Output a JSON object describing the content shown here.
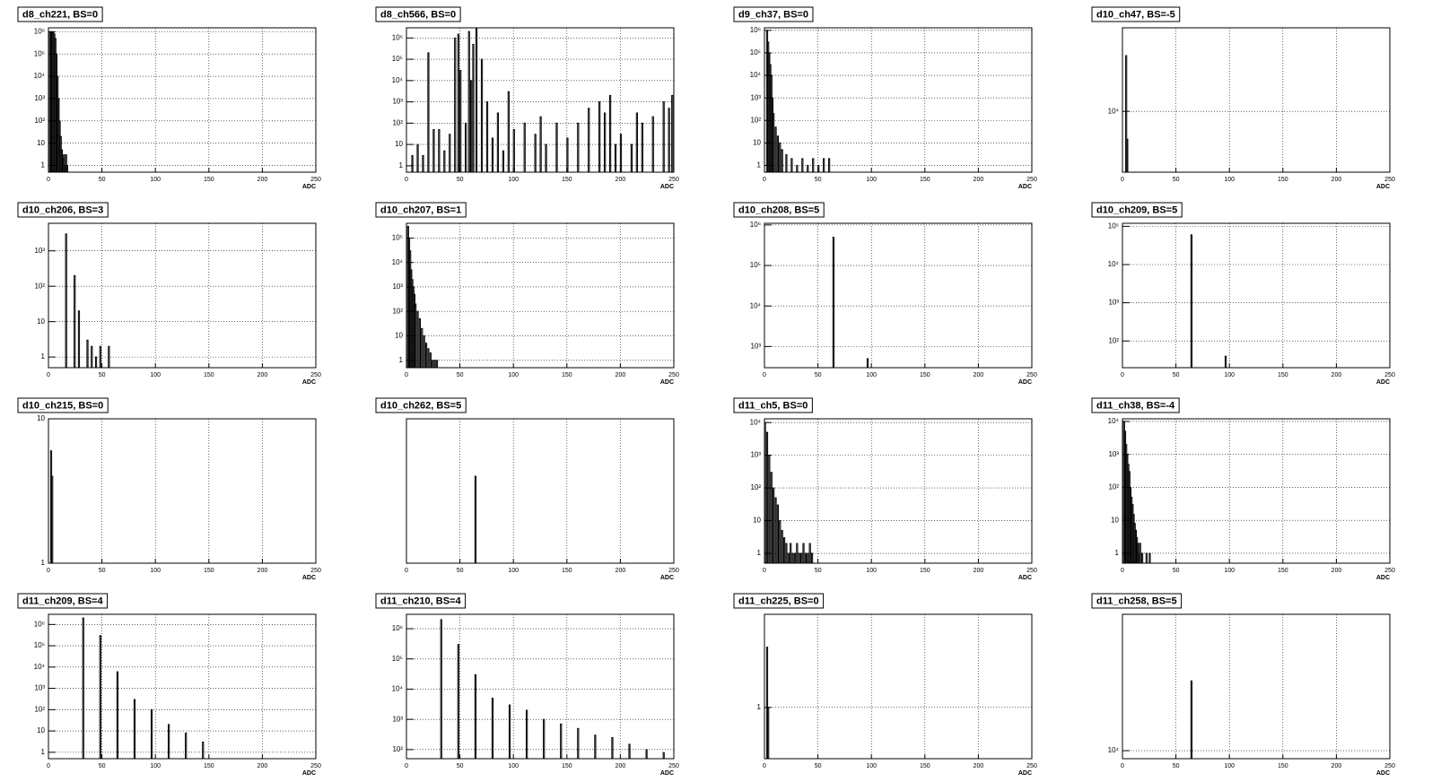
{
  "chart_data": [
    {
      "type": "bar",
      "title": "d8_ch221, BS=0",
      "xlabel": "ADC",
      "color": "#000000",
      "log_y": true,
      "grid": true,
      "xlim": [
        0,
        250
      ],
      "xticks": [
        0,
        50,
        100,
        150,
        200,
        250
      ],
      "ylim": [
        0.5,
        1500000
      ],
      "yticks": [
        1,
        10,
        {
          "value": 100,
          "label": "10²"
        },
        {
          "value": 1000,
          "label": "10³"
        },
        {
          "value": 10000,
          "label": "10⁴"
        },
        {
          "value": 100000,
          "label": "10⁵"
        },
        {
          "value": 1000000,
          "label": "10⁶"
        }
      ],
      "x": [
        1,
        2,
        3,
        4,
        5,
        6,
        7,
        8,
        9,
        10,
        11,
        12,
        13,
        14,
        15,
        16,
        17
      ],
      "values": [
        1000000,
        1000000,
        1000000,
        900000,
        800000,
        500000,
        100000,
        10000,
        1000,
        100,
        20,
        5,
        2,
        3,
        1,
        3,
        1
      ]
    },
    {
      "type": "bar",
      "title": "d8_ch566, BS=0",
      "xlabel": "ADC",
      "color": "#000000",
      "log_y": true,
      "grid": true,
      "xlim": [
        0,
        250
      ],
      "xticks": [
        0,
        50,
        100,
        150,
        200,
        250
      ],
      "ylim": [
        0.5,
        3000000
      ],
      "yticks": [
        1,
        10,
        {
          "value": 100,
          "label": "10²"
        },
        {
          "value": 1000,
          "label": "10³"
        },
        {
          "value": 10000,
          "label": "10⁴"
        },
        {
          "value": 100000,
          "label": "10⁵"
        },
        {
          "value": 1000000,
          "label": "10⁶"
        }
      ],
      "x": [
        5,
        10,
        15,
        20,
        25,
        30,
        35,
        40,
        45,
        48,
        50,
        55,
        58,
        60,
        62,
        65,
        70,
        75,
        80,
        85,
        90,
        95,
        100,
        110,
        120,
        125,
        130,
        140,
        150,
        160,
        170,
        180,
        185,
        190,
        195,
        200,
        210,
        215,
        220,
        230,
        240,
        245,
        248
      ],
      "values": [
        3,
        10,
        3,
        200000,
        50,
        50,
        5,
        30,
        1000000,
        1500000,
        30000,
        100,
        2000000,
        10000,
        500000,
        3000000,
        100000,
        1000,
        20,
        300,
        5,
        3000,
        50,
        100,
        30,
        200,
        10,
        100,
        20,
        100,
        500,
        1000,
        300,
        2000,
        10,
        30,
        10,
        300,
        100,
        200,
        1000,
        500,
        2000
      ]
    },
    {
      "type": "bar",
      "title": "d9_ch37, BS=0",
      "xlabel": "ADC",
      "color": "#000000",
      "log_y": true,
      "grid": true,
      "xlim": [
        0,
        250
      ],
      "xticks": [
        0,
        50,
        100,
        150,
        200,
        250
      ],
      "ylim": [
        0.5,
        1300000
      ],
      "yticks": [
        1,
        10,
        {
          "value": 100,
          "label": "10²"
        },
        {
          "value": 1000,
          "label": "10³"
        },
        {
          "value": 10000,
          "label": "10⁴"
        },
        {
          "value": 100000,
          "label": "10⁵"
        },
        {
          "value": 1000000,
          "label": "10⁶"
        }
      ],
      "x": [
        2,
        3,
        4,
        5,
        6,
        7,
        8,
        10,
        12,
        14,
        16,
        20,
        25,
        30,
        35,
        40,
        45,
        50,
        55,
        60
      ],
      "values": [
        1000000,
        300000,
        100000,
        30000,
        10000,
        1000,
        200,
        50,
        20,
        10,
        5,
        3,
        2,
        1,
        2,
        1,
        2,
        1,
        2,
        2
      ]
    },
    {
      "type": "bar",
      "title": "d10_ch47, BS=-5",
      "xlabel": "ADC",
      "color": "#000000",
      "log_y": true,
      "grid": true,
      "xlim": [
        0,
        250
      ],
      "xticks": [
        0,
        50,
        100,
        150,
        200,
        250
      ],
      "ylim": [
        2200,
        80000
      ],
      "yticks": [
        {
          "value": 10000,
          "label": "10⁴"
        }
      ],
      "x": [
        3,
        4
      ],
      "values": [
        40000,
        5000
      ]
    },
    {
      "type": "bar",
      "title": "d10_ch206, BS=3",
      "xlabel": "ADC",
      "color": "#000000",
      "log_y": true,
      "grid": true,
      "xlim": [
        0,
        250
      ],
      "xticks": [
        0,
        50,
        100,
        150,
        200,
        250
      ],
      "ylim": [
        0.5,
        6000
      ],
      "yticks": [
        1,
        10,
        {
          "value": 100,
          "label": "10²"
        },
        {
          "value": 1000,
          "label": "10³"
        }
      ],
      "x": [
        16,
        24,
        28,
        36,
        40,
        44,
        48,
        56
      ],
      "values": [
        3000,
        200,
        20,
        3,
        2,
        1,
        2,
        2
      ]
    },
    {
      "type": "bar",
      "title": "d10_ch207, BS=1",
      "xlabel": "ADC",
      "color": "#000000",
      "log_y": true,
      "grid": true,
      "xlim": [
        0,
        250
      ],
      "xticks": [
        0,
        50,
        100,
        150,
        200,
        250
      ],
      "ylim": [
        0.5,
        400000
      ],
      "yticks": [
        1,
        10,
        {
          "value": 100,
          "label": "10²"
        },
        {
          "value": 1000,
          "label": "10³"
        },
        {
          "value": 10000,
          "label": "10⁴"
        },
        {
          "value": 100000,
          "label": "10⁵"
        }
      ],
      "x": [
        1,
        2,
        3,
        4,
        5,
        6,
        7,
        8,
        10,
        12,
        14,
        16,
        18,
        20,
        22,
        24,
        26,
        28
      ],
      "values": [
        300000,
        100000,
        30000,
        5000,
        2000,
        1000,
        500,
        200,
        100,
        50,
        20,
        10,
        5,
        3,
        2,
        1,
        1,
        1
      ]
    },
    {
      "type": "bar",
      "title": "d10_ch208, BS=5",
      "xlabel": "ADC",
      "color": "#000000",
      "log_y": true,
      "grid": true,
      "xlim": [
        0,
        250
      ],
      "xticks": [
        0,
        50,
        100,
        150,
        200,
        250
      ],
      "ylim": [
        300,
        1100000
      ],
      "yticks": [
        {
          "value": 1000,
          "label": "10³"
        },
        {
          "value": 10000,
          "label": "10⁴"
        },
        {
          "value": 100000,
          "label": "10⁵"
        },
        {
          "value": 1000000,
          "label": "10⁶"
        }
      ],
      "x": [
        64,
        96
      ],
      "values": [
        500000,
        500
      ]
    },
    {
      "type": "bar",
      "title": "d10_ch209, BS=5",
      "xlabel": "ADC",
      "color": "#000000",
      "log_y": true,
      "grid": true,
      "xlim": [
        0,
        250
      ],
      "xticks": [
        0,
        50,
        100,
        150,
        200,
        250
      ],
      "ylim": [
        20,
        120000
      ],
      "yticks": [
        {
          "value": 100,
          "label": "10²"
        },
        {
          "value": 1000,
          "label": "10³"
        },
        {
          "value": 10000,
          "label": "10⁴"
        },
        {
          "value": 100000,
          "label": "10⁵"
        }
      ],
      "x": [
        64,
        96
      ],
      "values": [
        60000,
        40
      ]
    },
    {
      "type": "bar",
      "title": "d10_ch215, BS=0",
      "xlabel": "ADC",
      "color": "#000000",
      "log_y": true,
      "grid": true,
      "xlim": [
        0,
        250
      ],
      "xticks": [
        0,
        50,
        100,
        150,
        200,
        250
      ],
      "ylim": [
        1,
        10
      ],
      "yticks": [
        1,
        10
      ],
      "x": [
        2,
        3
      ],
      "values": [
        6,
        4
      ]
    },
    {
      "type": "bar",
      "title": "d10_ch262, BS=5",
      "xlabel": "ADC",
      "color": "#000000",
      "log_y": true,
      "grid": true,
      "xlim": [
        0,
        250
      ],
      "xticks": [
        0,
        50,
        100,
        150,
        200,
        250
      ],
      "ylim": [
        1,
        10
      ],
      "x": [
        64
      ],
      "values": [
        4
      ]
    },
    {
      "type": "bar",
      "title": "d11_ch5, BS=0",
      "xlabel": "ADC",
      "color": "#000000",
      "log_y": true,
      "grid": true,
      "xlim": [
        0,
        250
      ],
      "xticks": [
        0,
        50,
        100,
        150,
        200,
        250
      ],
      "ylim": [
        0.5,
        13000
      ],
      "yticks": [
        1,
        10,
        {
          "value": 100,
          "label": "10²"
        },
        {
          "value": 1000,
          "label": "10³"
        },
        {
          "value": 10000,
          "label": "10⁴"
        }
      ],
      "x": [
        0,
        2,
        4,
        6,
        8,
        10,
        12,
        14,
        16,
        18,
        20,
        22,
        24,
        26,
        28,
        30,
        32,
        34,
        36,
        38,
        40,
        42,
        44
      ],
      "values": [
        10000,
        5000,
        1000,
        300,
        100,
        50,
        30,
        10,
        5,
        3,
        2,
        1,
        2,
        1,
        1,
        2,
        1,
        1,
        2,
        1,
        1,
        2,
        1
      ]
    },
    {
      "type": "bar",
      "title": "d11_ch38, BS=-4",
      "xlabel": "ADC",
      "color": "#000000",
      "log_y": true,
      "grid": true,
      "xlim": [
        0,
        250
      ],
      "xticks": [
        0,
        50,
        100,
        150,
        200,
        250
      ],
      "ylim": [
        0.5,
        12000
      ],
      "yticks": [
        1,
        10,
        {
          "value": 100,
          "label": "10²"
        },
        {
          "value": 1000,
          "label": "10³"
        },
        {
          "value": 10000,
          "label": "10⁴"
        }
      ],
      "x": [
        1,
        2,
        3,
        4,
        5,
        6,
        7,
        8,
        9,
        10,
        11,
        12,
        13,
        14,
        15,
        16,
        18,
        22,
        25
      ],
      "values": [
        10000,
        5000,
        2000,
        1000,
        500,
        300,
        100,
        50,
        30,
        15,
        8,
        5,
        3,
        2,
        1,
        2,
        1,
        1,
        1
      ]
    },
    {
      "type": "bar",
      "title": "d11_ch209, BS=4",
      "xlabel": "ADC",
      "color": "#000000",
      "log_y": true,
      "grid": true,
      "xlim": [
        0,
        250
      ],
      "xticks": [
        0,
        50,
        100,
        150,
        200,
        250
      ],
      "ylim": [
        0.5,
        3000000
      ],
      "yticks": [
        1,
        10,
        {
          "value": 100,
          "label": "10²"
        },
        {
          "value": 1000,
          "label": "10³"
        },
        {
          "value": 10000,
          "label": "10⁴"
        },
        {
          "value": 100000,
          "label": "10⁵"
        },
        {
          "value": 1000000,
          "label": "10⁶"
        }
      ],
      "x": [
        32,
        48,
        64,
        80,
        96,
        112,
        128,
        144
      ],
      "values": [
        2000000,
        300000,
        6000,
        300,
        100,
        20,
        8,
        3
      ]
    },
    {
      "type": "bar",
      "title": "d11_ch210, BS=4",
      "xlabel": "ADC",
      "color": "#000000",
      "log_y": true,
      "grid": true,
      "xlim": [
        0,
        250
      ],
      "xticks": [
        0,
        50,
        100,
        150,
        200,
        250
      ],
      "ylim": [
        50,
        3000000
      ],
      "yticks": [
        {
          "value": 100,
          "label": "10²"
        },
        {
          "value": 1000,
          "label": "10³"
        },
        {
          "value": 10000,
          "label": "10⁴"
        },
        {
          "value": 100000,
          "label": "10⁵"
        },
        {
          "value": 1000000,
          "label": "10⁶"
        }
      ],
      "x": [
        32,
        48,
        64,
        80,
        96,
        112,
        128,
        144,
        160,
        176,
        192,
        208,
        224,
        240
      ],
      "values": [
        2000000,
        300000,
        30000,
        5000,
        3000,
        2000,
        1000,
        700,
        500,
        300,
        250,
        150,
        100,
        80
      ]
    },
    {
      "type": "bar",
      "title": "d11_ch225, BS=0",
      "xlabel": "ADC",
      "color": "#000000",
      "log_y": true,
      "grid": true,
      "xlim": [
        0,
        250
      ],
      "xticks": [
        0,
        50,
        100,
        150,
        200,
        250
      ],
      "ylim": [
        0.8,
        1.5
      ],
      "yticks": [
        1
      ],
      "x": [
        2,
        3
      ],
      "values": [
        1.3,
        1
      ]
    },
    {
      "type": "bar",
      "title": "d11_ch258, BS=5",
      "xlabel": "ADC",
      "color": "#000000",
      "log_y": true,
      "grid": true,
      "xlim": [
        0,
        250
      ],
      "xticks": [
        0,
        50,
        100,
        150,
        200,
        250
      ],
      "ylim": [
        9000,
        60000
      ],
      "yticks": [
        {
          "value": 10000,
          "label": "10⁴"
        }
      ],
      "x": [
        64
      ],
      "values": [
        25000
      ]
    }
  ]
}
